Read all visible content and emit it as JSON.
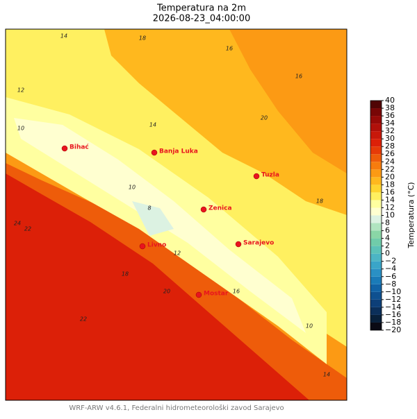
{
  "header": {
    "title": "Temperatura na 2m",
    "subtitle": "2026-08-23_04:00:00"
  },
  "cities": [
    "Bihać",
    "Banja Luka",
    "Tuzla",
    "Zenica",
    "Livno",
    "Sarajevo",
    "Mostar"
  ],
  "contour_labels": [
    14,
    18,
    16,
    12,
    10,
    14,
    20,
    16,
    10,
    8,
    12,
    18,
    22,
    24,
    20,
    16,
    22,
    10,
    14,
    18
  ],
  "colorbar": {
    "label": "Temperatura (°C)",
    "ticks": [
      {
        "value": -20,
        "label": "−20"
      },
      {
        "value": -18,
        "label": "−18"
      },
      {
        "value": -16,
        "label": "−16"
      },
      {
        "value": -14,
        "label": "−14"
      },
      {
        "value": -12,
        "label": "−12"
      },
      {
        "value": -10,
        "label": "−10"
      },
      {
        "value": -8,
        "label": "−8"
      },
      {
        "value": -6,
        "label": "−6"
      },
      {
        "value": -4,
        "label": "−4"
      },
      {
        "value": -2,
        "label": "−2"
      },
      0,
      2,
      4,
      6,
      8,
      10,
      12,
      14,
      16,
      18,
      20,
      22,
      24,
      26,
      28,
      30,
      32,
      34,
      36,
      38,
      40
    ],
    "colors": [
      "#0a0a14",
      "#08203a",
      "#0b2f5a",
      "#0d3f78",
      "#0e5090",
      "#1163a6",
      "#1a7bb8",
      "#2a90c4",
      "#3aa5c8",
      "#4cb5c4",
      "#5cc2b8",
      "#70ccaa",
      "#8ad6a6",
      "#b0e4c0",
      "#dcf2e2",
      "#ffffd0",
      "#ffffa0",
      "#fff060",
      "#ffd530",
      "#ffb81e",
      "#fc9a14",
      "#f67c0e",
      "#ee5c0a",
      "#e63a08",
      "#dc2008",
      "#c8180a",
      "#b0100a",
      "#960a08",
      "#780606",
      "#500404"
    ]
  },
  "footer": "WRF-ARW v4.6.1, Federalni hidrometeorološki zavod Sarajevo"
}
